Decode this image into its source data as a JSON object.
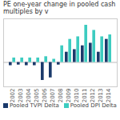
{
  "chart_data": {
    "type": "bar",
    "title": "PE one-year change in pooled cash multiples by v",
    "categories": [
      "2002",
      "2003",
      "2004",
      "2005",
      "2006",
      "2007",
      "2008",
      "2009",
      "2010",
      "2011",
      "2012",
      "2013",
      "2014"
    ],
    "series": [
      {
        "name": "Pooled TVPI Delta",
        "color": "#1b3a6b",
        "values": [
          -0.05,
          -0.04,
          -0.05,
          -0.05,
          -0.28,
          -0.24,
          -0.04,
          0.16,
          0.2,
          0.26,
          0.3,
          0.16,
          0.36
        ]
      },
      {
        "name": "Pooled DPI Delta",
        "color": "#3dccc0",
        "values": [
          0.07,
          0.07,
          0.07,
          0.07,
          0.09,
          0.05,
          0.26,
          0.36,
          0.4,
          0.58,
          0.5,
          0.4,
          0.43
        ]
      }
    ],
    "ylim": [
      -0.38,
      0.68
    ],
    "tick_labels": "x",
    "grid": false,
    "legend": "bottom"
  }
}
